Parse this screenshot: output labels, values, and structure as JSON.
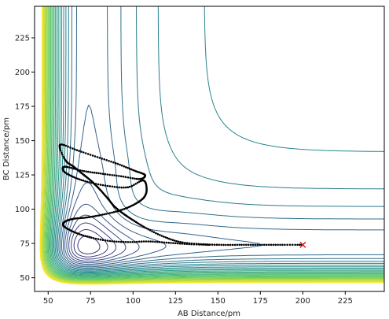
{
  "chart_data": {
    "type": "scatter",
    "title": "",
    "xlabel": "AB Distance/pm",
    "ylabel": "BC Distance/pm",
    "xlim": [
      42,
      248
    ],
    "ylim": [
      40,
      248
    ],
    "x_ticks": [
      50,
      75,
      100,
      125,
      150,
      175,
      200,
      225
    ],
    "y_ticks": [
      50,
      75,
      100,
      125,
      150,
      175,
      200,
      225
    ],
    "x_tick_labels": [
      "50",
      "75",
      "100",
      "125",
      "150",
      "175",
      "200",
      "225"
    ],
    "y_tick_labels": [
      "50",
      "75",
      "100",
      "125",
      "150",
      "175",
      "200",
      "225"
    ],
    "grid": false,
    "legend": "none",
    "background": {
      "kind": "contour",
      "description_levels": 36,
      "colormap": [
        "#440154",
        "#3b528b",
        "#21918c",
        "#5ec962",
        "#fde725"
      ],
      "minimum": {
        "ab": 74,
        "bc": 74
      },
      "saddle": {
        "ab": 92,
        "bc": 92
      }
    },
    "trajectory": {
      "name": "",
      "color": "#000000",
      "points": [
        [
          200,
          74
        ],
        [
          188,
          74
        ],
        [
          176,
          74
        ],
        [
          164,
          74
        ],
        [
          152,
          74
        ],
        [
          140,
          74.5
        ],
        [
          128,
          76
        ],
        [
          118,
          80
        ],
        [
          108,
          86
        ],
        [
          100,
          92
        ],
        [
          94,
          97
        ],
        [
          89,
          102
        ],
        [
          85,
          108
        ],
        [
          80,
          115
        ],
        [
          75,
          121
        ],
        [
          70,
          126
        ],
        [
          65,
          131
        ],
        [
          60,
          136
        ],
        [
          57,
          147
        ],
        [
          67,
          143
        ],
        [
          79,
          138
        ],
        [
          91,
          133
        ],
        [
          101,
          128
        ],
        [
          107,
          125
        ],
        [
          104,
          122
        ],
        [
          93,
          124
        ],
        [
          81,
          126
        ],
        [
          70,
          128
        ],
        [
          60,
          131
        ],
        [
          59,
          128
        ],
        [
          64,
          124
        ],
        [
          73,
          120
        ],
        [
          85,
          117
        ],
        [
          97,
          116
        ],
        [
          106,
          121
        ],
        [
          108,
          114
        ],
        [
          106,
          108
        ],
        [
          100,
          103
        ],
        [
          92,
          99
        ],
        [
          82,
          96
        ],
        [
          73,
          94
        ],
        [
          65,
          93
        ],
        [
          60,
          91
        ],
        [
          59,
          88
        ],
        [
          64,
          84
        ],
        [
          73,
          80
        ],
        [
          85,
          77
        ],
        [
          97,
          76
        ],
        [
          109,
          76.5
        ],
        [
          121,
          75.5
        ],
        [
          133,
          74.5
        ],
        [
          145,
          74
        ]
      ]
    },
    "end_marker": {
      "ab": 200,
      "bc": 74,
      "symbol": "x",
      "color": "#d62728"
    }
  }
}
